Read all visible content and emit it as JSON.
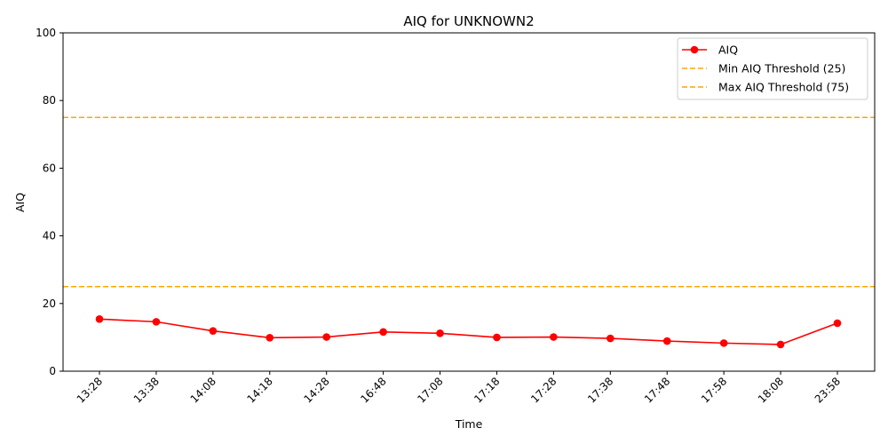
{
  "chart_data": {
    "type": "line",
    "title": "AIQ for UNKNOWN2",
    "xlabel": "Time",
    "ylabel": "AIQ",
    "ylim": [
      0,
      100
    ],
    "yticks": [
      0,
      20,
      40,
      60,
      80,
      100
    ],
    "categories": [
      "13:28",
      "13:38",
      "14:08",
      "14:18",
      "14:28",
      "16:48",
      "17:08",
      "17:18",
      "17:28",
      "17:38",
      "17:48",
      "17:58",
      "18:08",
      "23:58"
    ],
    "series": [
      {
        "name": "AIQ",
        "values": [
          15.4,
          14.6,
          11.9,
          9.9,
          10.1,
          11.6,
          11.2,
          10.0,
          10.1,
          9.7,
          8.9,
          8.3,
          7.9,
          14.2
        ],
        "color": "#ff0000",
        "style": "solid-marker"
      }
    ],
    "thresholds": [
      {
        "name": "Min AIQ Threshold (25)",
        "value": 25,
        "color": "#ffa500"
      },
      {
        "name": "Max AIQ Threshold (75)",
        "value": 75,
        "color": "#ffa500"
      }
    ],
    "legend_position": "top-right",
    "grid": false
  }
}
